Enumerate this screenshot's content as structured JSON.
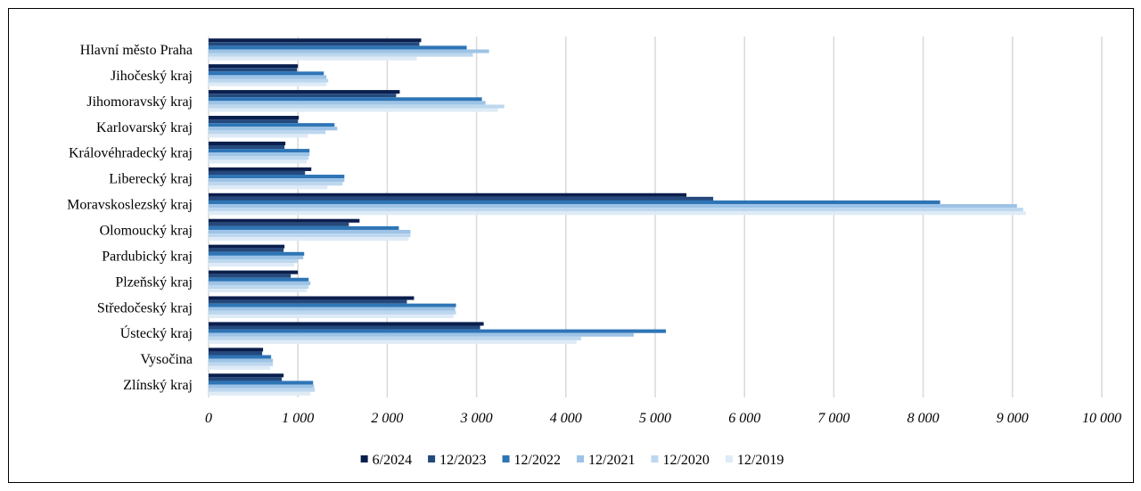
{
  "chart_data": {
    "type": "bar",
    "orientation": "horizontal",
    "categories": [
      "Hlavní město Praha",
      "Jihočeský kraj",
      "Jihomoravský kraj",
      "Karlovarský kraj",
      "Královéhradecký kraj",
      "Liberecký kraj",
      "Moravskoslezský kraj",
      "Olomoucký kraj",
      "Pardubický kraj",
      "Plzeňský kraj",
      "Středočeský kraj",
      "Ústecký kraj",
      "Vysočina",
      "Zlínský kraj"
    ],
    "series": [
      {
        "name": "6/2024",
        "color": "#0b1f4e",
        "values": [
          2380,
          1000,
          2140,
          1010,
          860,
          1150,
          5350,
          1690,
          850,
          1000,
          2300,
          3080,
          610,
          840
        ]
      },
      {
        "name": "12/2023",
        "color": "#24497c",
        "values": [
          2360,
          990,
          2100,
          1000,
          850,
          1080,
          5650,
          1570,
          840,
          920,
          2220,
          3040,
          600,
          820
        ]
      },
      {
        "name": "12/2022",
        "color": "#2e75b6",
        "values": [
          2890,
          1290,
          3060,
          1410,
          1130,
          1520,
          8190,
          2130,
          1070,
          1120,
          2770,
          5120,
          700,
          1170
        ]
      },
      {
        "name": "12/2021",
        "color": "#9dc3e6",
        "values": [
          3140,
          1320,
          3100,
          1440,
          1130,
          1520,
          9050,
          2260,
          1060,
          1140,
          2760,
          4760,
          720,
          1180
        ]
      },
      {
        "name": "12/2020",
        "color": "#bdd7ee",
        "values": [
          2960,
          1340,
          3310,
          1310,
          1120,
          1500,
          9120,
          2260,
          1000,
          1120,
          2770,
          4170,
          720,
          1190
        ]
      },
      {
        "name": "12/2019",
        "color": "#deebf7",
        "values": [
          2330,
          1320,
          3240,
          1110,
          1100,
          1330,
          9150,
          2240,
          960,
          1100,
          2740,
          4120,
          690,
          1140
        ]
      }
    ],
    "xlim": [
      0,
      10000
    ],
    "xticks": [
      0,
      1000,
      2000,
      3000,
      4000,
      5000,
      6000,
      7000,
      8000,
      9000,
      10000
    ],
    "xtick_labels": [
      "0",
      "1 000",
      "2 000",
      "3 000",
      "4 000",
      "5 000",
      "6 000",
      "7 000",
      "8 000",
      "9 000",
      "10 000"
    ],
    "grid": "vertical",
    "legend": "bottom-center",
    "title": "",
    "xlabel": "",
    "ylabel": ""
  }
}
